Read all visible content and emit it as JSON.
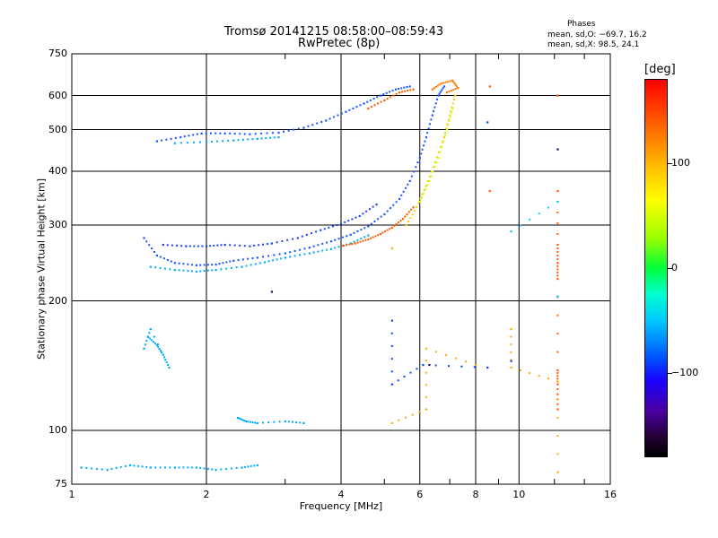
{
  "header": {
    "title": "Tromsø 20141215 08:58:00–08:59:43",
    "subtitle": "RwPretec (8p)",
    "phase_title": "Phases",
    "phase_o": "mean, sd,O: −69.7, 16.2",
    "phase_x": "mean, sd,X:  98.5, 24.1"
  },
  "colorbar": {
    "unit": "[deg]",
    "ticks": [
      "100",
      "0",
      "−100"
    ],
    "tick_values": [
      100,
      0,
      -100
    ],
    "range": [
      -180,
      180
    ],
    "colors": [
      "#000000",
      "#4b00a0",
      "#0050ff",
      "#00c8ff",
      "#00ff3a",
      "#ffff00",
      "#ff6a00",
      "#ff0000"
    ]
  },
  "chart_data": {
    "type": "scatter",
    "xlabel": "Frequency [MHz]",
    "ylabel": "Stationary phase Virtual Height [km]",
    "xscale": "log",
    "yscale": "log",
    "xlim": [
      1,
      16
    ],
    "ylim": [
      75,
      750
    ],
    "xticks": [
      "1",
      "2",
      "4",
      "6",
      "8",
      "10",
      "16"
    ],
    "xtick_values": [
      1,
      2,
      4,
      6,
      8,
      10,
      16
    ],
    "yticks": [
      "75",
      "100",
      "200",
      "300",
      "400",
      "500",
      "600",
      "750"
    ],
    "ytick_values": [
      75,
      100,
      200,
      300,
      400,
      500,
      600,
      750
    ],
    "grid": true,
    "series": [
      {
        "color": "#1a55ff",
        "points": [
          [
            1.45,
            280
          ],
          [
            1.55,
            255
          ],
          [
            1.7,
            245
          ],
          [
            1.9,
            242
          ],
          [
            2.1,
            243
          ],
          [
            2.3,
            248
          ],
          [
            2.6,
            252
          ],
          [
            3.0,
            258
          ],
          [
            3.4,
            266
          ],
          [
            3.8,
            275
          ],
          [
            4.2,
            285
          ],
          [
            4.6,
            298
          ],
          [
            5.0,
            318
          ],
          [
            5.4,
            345
          ],
          [
            5.7,
            380
          ],
          [
            6.0,
            430
          ],
          [
            6.2,
            480
          ],
          [
            6.4,
            540
          ],
          [
            6.6,
            600
          ],
          [
            6.8,
            630
          ]
        ]
      },
      {
        "color": "#00aaff",
        "points": [
          [
            1.5,
            240
          ],
          [
            1.7,
            236
          ],
          [
            1.9,
            234
          ],
          [
            2.1,
            236
          ],
          [
            2.4,
            240
          ],
          [
            2.7,
            246
          ],
          [
            3.0,
            252
          ],
          [
            3.4,
            258
          ],
          [
            3.8,
            264
          ],
          [
            4.2,
            272
          ],
          [
            4.6,
            284
          ]
        ]
      },
      {
        "color": "#2040ff",
        "points": [
          [
            1.6,
            270
          ],
          [
            1.8,
            268
          ],
          [
            2.0,
            268
          ],
          [
            2.2,
            270
          ],
          [
            2.5,
            268
          ],
          [
            2.8,
            272
          ],
          [
            3.2,
            280
          ],
          [
            3.6,
            292
          ],
          [
            4.0,
            302
          ],
          [
            4.4,
            315
          ],
          [
            4.8,
            335
          ]
        ]
      },
      {
        "color": "#ff5a00",
        "points": [
          [
            4.0,
            268
          ],
          [
            4.3,
            272
          ],
          [
            4.6,
            278
          ],
          [
            4.9,
            286
          ],
          [
            5.2,
            296
          ],
          [
            5.5,
            310
          ],
          [
            5.8,
            330
          ]
        ]
      },
      {
        "color": "#ffcc00",
        "points": [
          [
            5.6,
            300
          ],
          [
            5.9,
            330
          ],
          [
            6.2,
            370
          ],
          [
            6.5,
            420
          ],
          [
            6.8,
            480
          ],
          [
            7.0,
            540
          ],
          [
            7.2,
            600
          ]
        ]
      },
      {
        "color": "#c8ff00",
        "points": [
          [
            6.0,
            340
          ],
          [
            6.3,
            380
          ],
          [
            6.6,
            430
          ],
          [
            6.9,
            500
          ],
          [
            7.1,
            560
          ]
        ]
      },
      {
        "color": "#1a55ff",
        "points": [
          [
            1.55,
            470
          ],
          [
            1.75,
            480
          ],
          [
            1.95,
            490
          ],
          [
            2.2,
            490
          ],
          [
            2.5,
            488
          ],
          [
            2.9,
            492
          ],
          [
            3.3,
            505
          ],
          [
            3.7,
            525
          ],
          [
            4.1,
            550
          ],
          [
            4.5,
            575
          ],
          [
            4.9,
            600
          ],
          [
            5.3,
            620
          ],
          [
            5.7,
            630
          ]
        ]
      },
      {
        "color": "#00aaff",
        "points": [
          [
            1.7,
            465
          ],
          [
            2.0,
            468
          ],
          [
            2.3,
            472
          ],
          [
            2.6,
            476
          ],
          [
            2.9,
            480
          ]
        ]
      },
      {
        "color": "#ff5a00",
        "points": [
          [
            4.6,
            560
          ],
          [
            5.0,
            585
          ],
          [
            5.4,
            610
          ],
          [
            5.8,
            620
          ]
        ]
      },
      {
        "color": "#00aaff",
        "points": [
          [
            1.48,
            165
          ],
          [
            1.55,
            158
          ],
          [
            1.6,
            150
          ],
          [
            1.65,
            140
          ],
          [
            1.5,
            172
          ],
          [
            1.45,
            155
          ]
        ]
      },
      {
        "color": "#00aaff",
        "points": [
          [
            1.05,
            82
          ],
          [
            1.2,
            81
          ],
          [
            1.35,
            83
          ],
          [
            1.5,
            82
          ],
          [
            1.7,
            82
          ],
          [
            1.9,
            82
          ],
          [
            2.1,
            81
          ],
          [
            2.4,
            82
          ],
          [
            2.6,
            83
          ]
        ]
      },
      {
        "color": "#00aaff",
        "points": [
          [
            2.35,
            107
          ],
          [
            2.45,
            105
          ],
          [
            2.6,
            104
          ],
          [
            3.0,
            105
          ],
          [
            3.3,
            104
          ]
        ]
      },
      {
        "color": "#ff7a00",
        "points": [
          [
            6.4,
            620
          ],
          [
            6.7,
            640
          ],
          [
            7.1,
            650
          ],
          [
            7.3,
            625
          ],
          [
            6.9,
            610
          ]
        ]
      },
      {
        "color": "#ff5a00",
        "points": [
          [
            8.6,
            630
          ],
          [
            8.6,
            360
          ],
          [
            12.2,
            600
          ],
          [
            12.2,
            360
          ],
          [
            12.2,
            270
          ],
          [
            12.2,
            245
          ],
          [
            12.2,
            225
          ],
          [
            12.2,
            138
          ],
          [
            12.2,
            128
          ],
          [
            12.2,
            112
          ]
        ]
      },
      {
        "color": "#ffaa00",
        "points": [
          [
            9.6,
            172
          ],
          [
            9.6,
            140
          ],
          [
            12.2,
            130
          ],
          [
            12.2,
            80
          ],
          [
            8.0,
            142
          ],
          [
            6.2,
            155
          ],
          [
            6.2,
            112
          ],
          [
            5.2,
            104
          ],
          [
            5.2,
            265
          ]
        ]
      },
      {
        "color": "#0044ff",
        "points": [
          [
            5.2,
            180
          ],
          [
            5.2,
            128
          ],
          [
            6.1,
            142
          ],
          [
            8.5,
            140
          ],
          [
            8.5,
            520
          ],
          [
            9.6,
            145
          ]
        ]
      },
      {
        "color": "#00ccff",
        "points": [
          [
            9.6,
            290
          ],
          [
            12.2,
            340
          ],
          [
            12.2,
            205
          ]
        ]
      },
      {
        "color": "#200060",
        "points": [
          [
            2.8,
            210
          ],
          [
            12.2,
            450
          ],
          [
            6.3,
            142
          ]
        ]
      }
    ]
  }
}
